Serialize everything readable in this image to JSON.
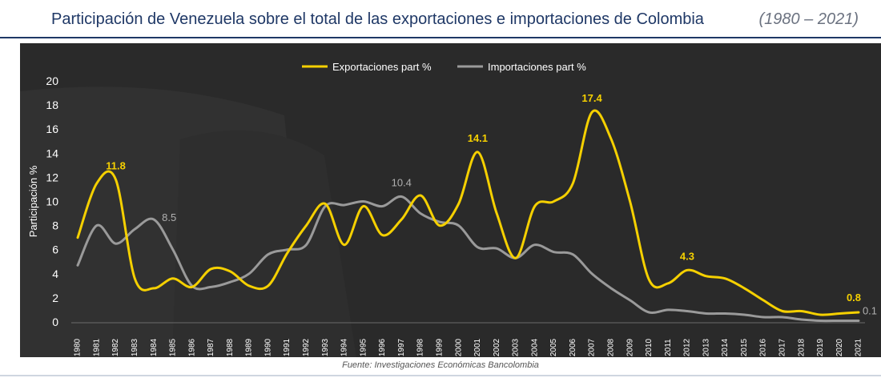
{
  "header": {
    "title": "Participación de Venezuela sobre el total de las exportaciones e importaciones de Colombia",
    "period": "(1980 – 2021)"
  },
  "footer": {
    "source": "Fuente:  Investigaciones Económicas Bancolombia"
  },
  "colors": {
    "background": "#2a2a2a",
    "exports": "#f5d000",
    "imports": "#9a9a9a",
    "text": "#ffffff",
    "title": "#1f3866"
  },
  "chart_data": {
    "type": "line",
    "title": "",
    "xlabel": "",
    "ylabel": "Participación %",
    "ylim": [
      0,
      20
    ],
    "yticks": [
      0,
      2,
      4,
      6,
      8,
      10,
      12,
      14,
      16,
      18,
      20
    ],
    "grid": false,
    "legend_position": "top-center",
    "categories": [
      "1980",
      "1981",
      "1982",
      "1983",
      "1984",
      "1985",
      "1986",
      "1987",
      "1988",
      "1989",
      "1990",
      "1991",
      "1992",
      "1993",
      "1994",
      "1995",
      "1996",
      "1997",
      "1998",
      "1999",
      "2000",
      "2001",
      "2002",
      "2003",
      "2004",
      "2005",
      "2006",
      "2007",
      "2008",
      "2009",
      "2010",
      "2011",
      "2012",
      "2013",
      "2014",
      "2015",
      "2016",
      "2017",
      "2018",
      "2019",
      "2020",
      "2021"
    ],
    "series": [
      {
        "name": "Exportaciones part %",
        "color": "#f5d000",
        "values": [
          7.0,
          11.5,
          11.8,
          3.6,
          2.8,
          3.6,
          2.9,
          4.4,
          4.2,
          3.0,
          3.0,
          5.7,
          8.0,
          9.8,
          6.4,
          9.6,
          7.2,
          8.5,
          10.5,
          8.0,
          9.8,
          14.1,
          9.0,
          5.3,
          9.6,
          10.0,
          11.5,
          17.4,
          15.2,
          10.0,
          3.5,
          3.2,
          4.3,
          3.8,
          3.6,
          2.8,
          1.8,
          0.9,
          0.9,
          0.6,
          0.7,
          0.8
        ],
        "labels": [
          {
            "year": "1982",
            "text": "11.8"
          },
          {
            "year": "2001",
            "text": "14.1"
          },
          {
            "year": "2007",
            "text": "17.4"
          },
          {
            "year": "2012",
            "text": "4.3"
          },
          {
            "year": "2021",
            "text": "0.8"
          }
        ]
      },
      {
        "name": "Importaciones part %",
        "color": "#9a9a9a",
        "values": [
          4.7,
          8.0,
          6.5,
          7.7,
          8.5,
          6.0,
          3.0,
          2.9,
          3.3,
          4.0,
          5.6,
          6.0,
          6.4,
          9.6,
          9.7,
          10.0,
          9.6,
          10.4,
          9.0,
          8.3,
          8.0,
          6.2,
          6.1,
          5.3,
          6.4,
          5.8,
          5.6,
          4.0,
          2.8,
          1.8,
          0.8,
          1.0,
          0.9,
          0.7,
          0.7,
          0.6,
          0.4,
          0.4,
          0.2,
          0.1,
          0.1,
          0.1
        ],
        "labels": [
          {
            "year": "1984",
            "text": "8.5"
          },
          {
            "year": "1997",
            "text": "10.4"
          },
          {
            "year": "2021",
            "text": "0.1"
          }
        ]
      }
    ]
  }
}
